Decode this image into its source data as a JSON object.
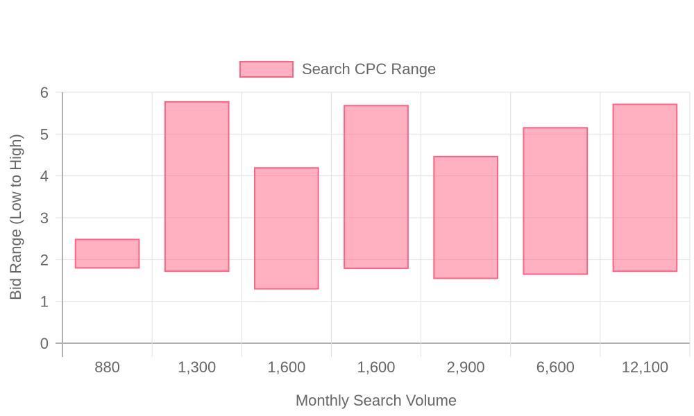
{
  "chart_data": {
    "type": "bar",
    "subtype": "floating-range",
    "categories": [
      "880",
      "1,300",
      "1,600",
      "1,600",
      "2,900",
      "6,600",
      "12,100"
    ],
    "series": [
      {
        "name": "Search CPC Range",
        "ranges": [
          [
            1.8,
            2.48
          ],
          [
            1.72,
            5.77
          ],
          [
            1.3,
            4.19
          ],
          [
            1.79,
            5.68
          ],
          [
            1.55,
            4.46
          ],
          [
            1.65,
            5.15
          ],
          [
            1.72,
            5.71
          ]
        ]
      }
    ],
    "xlabel": "Monthly Search Volume",
    "ylabel": "Bid Range (Low to High)",
    "ylim": [
      0,
      6
    ],
    "yticks": [
      "0",
      "1",
      "2",
      "3",
      "4",
      "5",
      "6"
    ],
    "grid": true,
    "legend_position": "top",
    "colors": {
      "fill": "rgba(255,99,132,0.5)",
      "border": "#ff6384",
      "grid": "#e0e0e0",
      "axis": "#b0b0b0"
    }
  }
}
